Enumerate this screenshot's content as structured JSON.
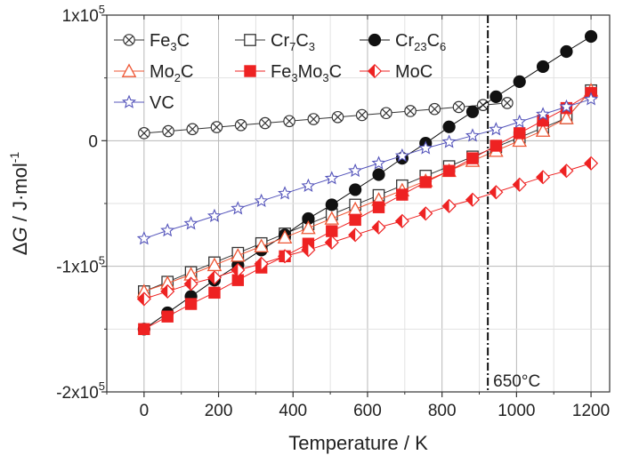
{
  "chart_data": {
    "type": "line",
    "xlabel": "Temperature / K",
    "ylabel": "ΔG / J·mol⁻¹",
    "xlim": [
      -100,
      1250
    ],
    "ylim": [
      -200000,
      100000
    ],
    "grid": true,
    "legend_position": "top-left (inside)",
    "x_ticks": [
      {
        "value": 0,
        "label": "0"
      },
      {
        "value": 200,
        "label": "200"
      },
      {
        "value": 400,
        "label": "400"
      },
      {
        "value": 600,
        "label": "600"
      },
      {
        "value": 800,
        "label": "800"
      },
      {
        "value": 1000,
        "label": "1000"
      },
      {
        "value": 1200,
        "label": "1200"
      }
    ],
    "y_ticks": [
      {
        "value": 100000,
        "label": "1x10",
        "exp": "5"
      },
      {
        "value": 0,
        "label": "0",
        "exp": ""
      },
      {
        "value": -100000,
        "label": "-1x10",
        "exp": "5"
      },
      {
        "value": -200000,
        "label": "-2x10",
        "exp": "5"
      }
    ],
    "annotation": {
      "text": "650°C",
      "x": 923
    },
    "series": [
      {
        "name": "Fe3C",
        "label_parts": [
          [
            "Fe",
            ""
          ],
          [
            "3",
            "sub"
          ],
          [
            "C",
            ""
          ]
        ],
        "marker": "xcircle",
        "color": "#333333",
        "x": [
          0,
          65,
          130,
          195,
          260,
          325,
          390,
          455,
          520,
          585,
          650,
          715,
          780,
          845,
          910,
          975
        ],
        "y": [
          6000,
          7600,
          9200,
          10800,
          12400,
          14000,
          15600,
          17200,
          18800,
          20400,
          22000,
          23600,
          25200,
          26800,
          28400,
          30000
        ]
      },
      {
        "name": "Cr7C3",
        "label_parts": [
          [
            "Cr",
            ""
          ],
          [
            "7",
            "sub"
          ],
          [
            "C",
            ""
          ],
          [
            "3",
            "sub"
          ]
        ],
        "marker": "square-open",
        "color": "#333333",
        "x": [
          0,
          63,
          126,
          189,
          252,
          315,
          378,
          441,
          504,
          567,
          630,
          693,
          756,
          819,
          882,
          945,
          1008,
          1071,
          1134,
          1200
        ],
        "y": [
          -120000,
          -112400,
          -104700,
          -97000,
          -89400,
          -81700,
          -74000,
          -66400,
          -58700,
          -51000,
          -43400,
          -35700,
          -28000,
          -20400,
          -12700,
          -5000,
          2600,
          10300,
          18000,
          40000
        ]
      },
      {
        "name": "Cr23C6",
        "label_parts": [
          [
            "Cr",
            ""
          ],
          [
            "23",
            "sub"
          ],
          [
            "C",
            ""
          ],
          [
            "6",
            "sub"
          ]
        ],
        "marker": "circle-filled",
        "color": "#111111",
        "x": [
          0,
          63,
          126,
          189,
          252,
          315,
          378,
          441,
          504,
          567,
          630,
          693,
          756,
          819,
          882,
          945,
          1008,
          1071,
          1134,
          1200
        ],
        "y": [
          -150000,
          -137000,
          -124000,
          -111000,
          -99000,
          -87000,
          -75000,
          -62000,
          -51000,
          -39000,
          -27000,
          -14000,
          -2000,
          11000,
          23000,
          35000,
          47000,
          59000,
          71000,
          83000
        ]
      },
      {
        "name": "Mo2C",
        "label_parts": [
          [
            "Mo",
            ""
          ],
          [
            "2",
            "sub"
          ],
          [
            "C",
            ""
          ]
        ],
        "marker": "triangle-open",
        "color": "#ee5533",
        "x": [
          0,
          63,
          126,
          189,
          252,
          315,
          378,
          441,
          504,
          567,
          630,
          693,
          756,
          819,
          882,
          945,
          1008,
          1071,
          1134,
          1200
        ],
        "y": [
          -120000,
          -113500,
          -106500,
          -99000,
          -91500,
          -84000,
          -77000,
          -69500,
          -62000,
          -54500,
          -47000,
          -39500,
          -32000,
          -24000,
          -16000,
          -8000,
          0,
          8000,
          18000,
          40000
        ]
      },
      {
        "name": "Fe3Mo3C",
        "label_parts": [
          [
            "Fe",
            ""
          ],
          [
            "3",
            "sub"
          ],
          [
            "Mo",
            ""
          ],
          [
            "3",
            "sub"
          ],
          [
            "C",
            ""
          ]
        ],
        "marker": "square-filled",
        "color": "#ee2222",
        "x": [
          0,
          63,
          126,
          189,
          252,
          315,
          378,
          441,
          504,
          567,
          630,
          693,
          756,
          819,
          882,
          945,
          1008,
          1071,
          1134,
          1200
        ],
        "y": [
          -150000,
          -140000,
          -130000,
          -121000,
          -111000,
          -101000,
          -92000,
          -82000,
          -72000,
          -63000,
          -53000,
          -43000,
          -33000,
          -24000,
          -14000,
          -4000,
          6000,
          16000,
          26000,
          38000
        ]
      },
      {
        "name": "MoC",
        "label_parts": [
          [
            "MoC",
            ""
          ]
        ],
        "marker": "diamond-half",
        "color": "#ee2222",
        "x": [
          0,
          63,
          126,
          189,
          252,
          315,
          378,
          441,
          504,
          567,
          630,
          693,
          756,
          819,
          882,
          945,
          1008,
          1071,
          1134,
          1200
        ],
        "y": [
          -126000,
          -120000,
          -114000,
          -109000,
          -103000,
          -98000,
          -92000,
          -87000,
          -81000,
          -75000,
          -69000,
          -64000,
          -58000,
          -52000,
          -47000,
          -41000,
          -35000,
          -29000,
          -24000,
          -18000
        ]
      },
      {
        "name": "VC",
        "label_parts": [
          [
            "VC",
            ""
          ]
        ],
        "marker": "star-open",
        "color": "#5555bb",
        "x": [
          0,
          63,
          126,
          189,
          252,
          315,
          378,
          441,
          504,
          567,
          630,
          693,
          756,
          819,
          882,
          945,
          1008,
          1071,
          1134,
          1200
        ],
        "y": [
          -78000,
          -71500,
          -66000,
          -60000,
          -54000,
          -48000,
          -42000,
          -36000,
          -30000,
          -24000,
          -18000,
          -12000,
          -6000,
          -1000,
          4000,
          9000,
          15000,
          21000,
          27000,
          33000
        ]
      }
    ]
  }
}
